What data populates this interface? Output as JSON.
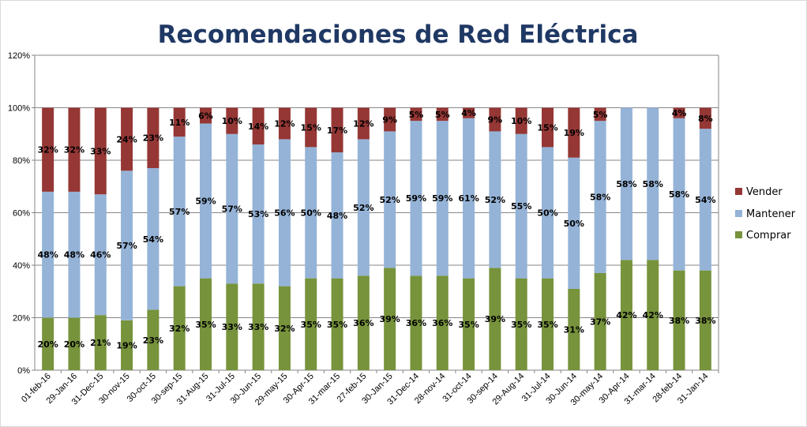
{
  "chart_data": {
    "type": "bar",
    "stacked": true,
    "title": "Recomendaciones de Red Eléctrica",
    "categories": [
      "01-feb-16",
      "29-Jan-16",
      "31-Dec-15",
      "30-nov-15",
      "30-oct-15",
      "30-sep-15",
      "31-Aug-15",
      "31-Jul-15",
      "30-Jun-15",
      "29-may-15",
      "30-Apr-15",
      "31-mar-15",
      "27-feb-15",
      "30-Jan-15",
      "31-Dec-14",
      "28-nov-14",
      "31-oct-14",
      "30-sep-14",
      "29-Aug-14",
      "31-Jul-14",
      "30-Jun-14",
      "30-may-14",
      "30-Apr-14",
      "31-mar-14",
      "28-feb-14",
      "31-Jan-14"
    ],
    "yticks": [
      "0%",
      "20%",
      "40%",
      "60%",
      "80%",
      "100%",
      "120%"
    ],
    "ylim": [
      0,
      120
    ],
    "grid": true,
    "legend_position": "right",
    "series": [
      {
        "name": "Comprar",
        "color": "#77933c",
        "values": [
          20,
          20,
          21,
          19,
          23,
          32,
          35,
          33,
          33,
          32,
          35,
          35,
          36,
          39,
          36,
          36,
          35,
          39,
          35,
          35,
          31,
          37,
          42,
          42,
          38,
          38
        ],
        "labels": [
          "20%",
          "20%",
          "21%",
          "19%",
          "23%",
          "32%",
          "35%",
          "33%",
          "33%",
          "32%",
          "35%",
          "35%",
          "36%",
          "39%",
          "36%",
          "36%",
          "35%",
          "39%",
          "35%",
          "35%",
          "31%",
          "37%",
          "42%",
          "42%",
          "38%",
          "38%"
        ]
      },
      {
        "name": "Mantener",
        "color": "#95b3d7",
        "values": [
          48,
          48,
          46,
          57,
          54,
          57,
          59,
          57,
          53,
          56,
          50,
          48,
          52,
          52,
          59,
          59,
          61,
          52,
          55,
          50,
          50,
          58,
          58,
          58,
          58,
          54
        ],
        "labels": [
          "48%",
          "48%",
          "46%",
          "57%",
          "54%",
          "57%",
          "59%",
          "57%",
          "53%",
          "56%",
          "50%",
          "48%",
          "52%",
          "52%",
          "59%",
          "59%",
          "61%",
          "52%",
          "55%",
          "50%",
          "50%",
          "58%",
          "58%",
          "58%",
          "58%",
          "54%"
        ]
      },
      {
        "name": "Vender",
        "color": "#953735",
        "values": [
          32,
          32,
          33,
          24,
          23,
          11,
          6,
          10,
          14,
          12,
          15,
          17,
          12,
          9,
          5,
          5,
          4,
          9,
          10,
          15,
          19,
          5,
          0,
          0,
          4,
          8
        ],
        "labels": [
          "32%",
          "32%",
          "33%",
          "24%",
          "23%",
          "11%",
          "6%",
          "10%",
          "14%",
          "12%",
          "15%",
          "17%",
          "12%",
          "9%",
          "5%",
          "5%",
          "4%",
          "9%",
          "10%",
          "15%",
          "19%",
          "5%",
          "",
          "",
          "4%",
          "8%"
        ]
      }
    ],
    "legend": [
      "Vender",
      "Mantener",
      "Comprar"
    ]
  }
}
